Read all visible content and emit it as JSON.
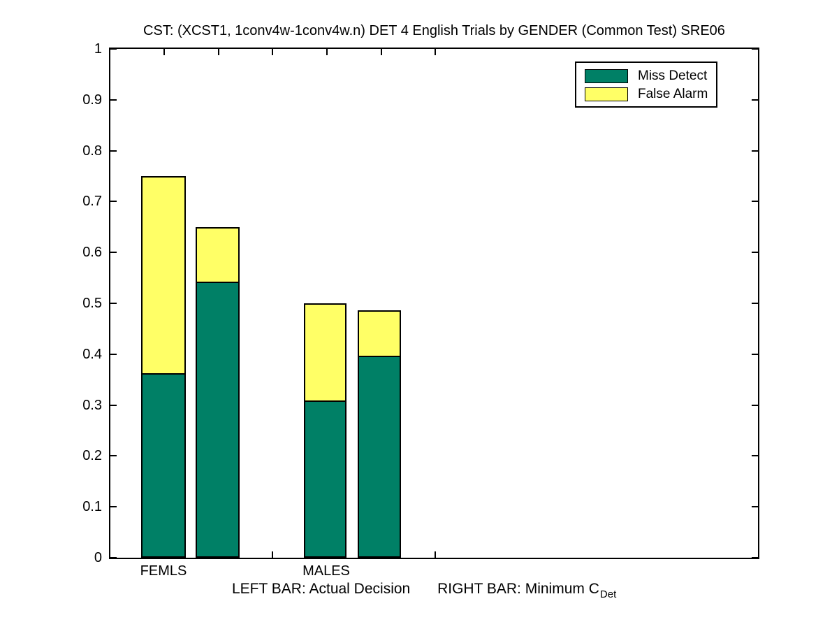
{
  "chart_data": {
    "type": "bar",
    "stacked": true,
    "title": "CST: (XCST1, 1conv4w-1conv4w.n) DET 4 English Trials by GENDER (Common Test) SRE06",
    "xlabel": "",
    "ylabel": "",
    "ylim": [
      0,
      1
    ],
    "yticks": [
      0,
      0.1,
      0.2,
      0.3,
      0.4,
      0.5,
      0.6,
      0.7,
      0.8,
      0.9,
      1
    ],
    "ytick_labels": [
      "0",
      "0.1",
      "0.2",
      "0.3",
      "0.4",
      "0.5",
      "0.6",
      "0.7",
      "0.8",
      "0.9",
      "1"
    ],
    "grid": false,
    "categories": [
      "FEMLS",
      "MALES"
    ],
    "legend_position": "top-right",
    "legend": [
      {
        "label": "Miss Detect",
        "color": "#008066"
      },
      {
        "label": "False Alarm",
        "color": "#ffff66"
      }
    ],
    "bar_edge_color": "#000000",
    "background_color": "#ffffff",
    "groups": [
      {
        "category": "FEMLS",
        "bars": [
          {
            "kind": "Actual Decision",
            "miss_detect": 0.363,
            "false_alarm": 0.387,
            "total": 0.75
          },
          {
            "kind": "Minimum CDet",
            "miss_detect": 0.542,
            "false_alarm": 0.107,
            "total": 0.649
          }
        ]
      },
      {
        "category": "MALES",
        "bars": [
          {
            "kind": "Actual Decision",
            "miss_detect": 0.309,
            "false_alarm": 0.191,
            "total": 0.5
          },
          {
            "kind": "Minimum CDet",
            "miss_detect": 0.397,
            "false_alarm": 0.089,
            "total": 0.486
          }
        ]
      }
    ],
    "footnote": {
      "left_bar": "LEFT BAR: Actual Decision",
      "right_bar_prefix": "RIGHT BAR: Minimum C",
      "right_bar_subscript": "Det"
    }
  }
}
